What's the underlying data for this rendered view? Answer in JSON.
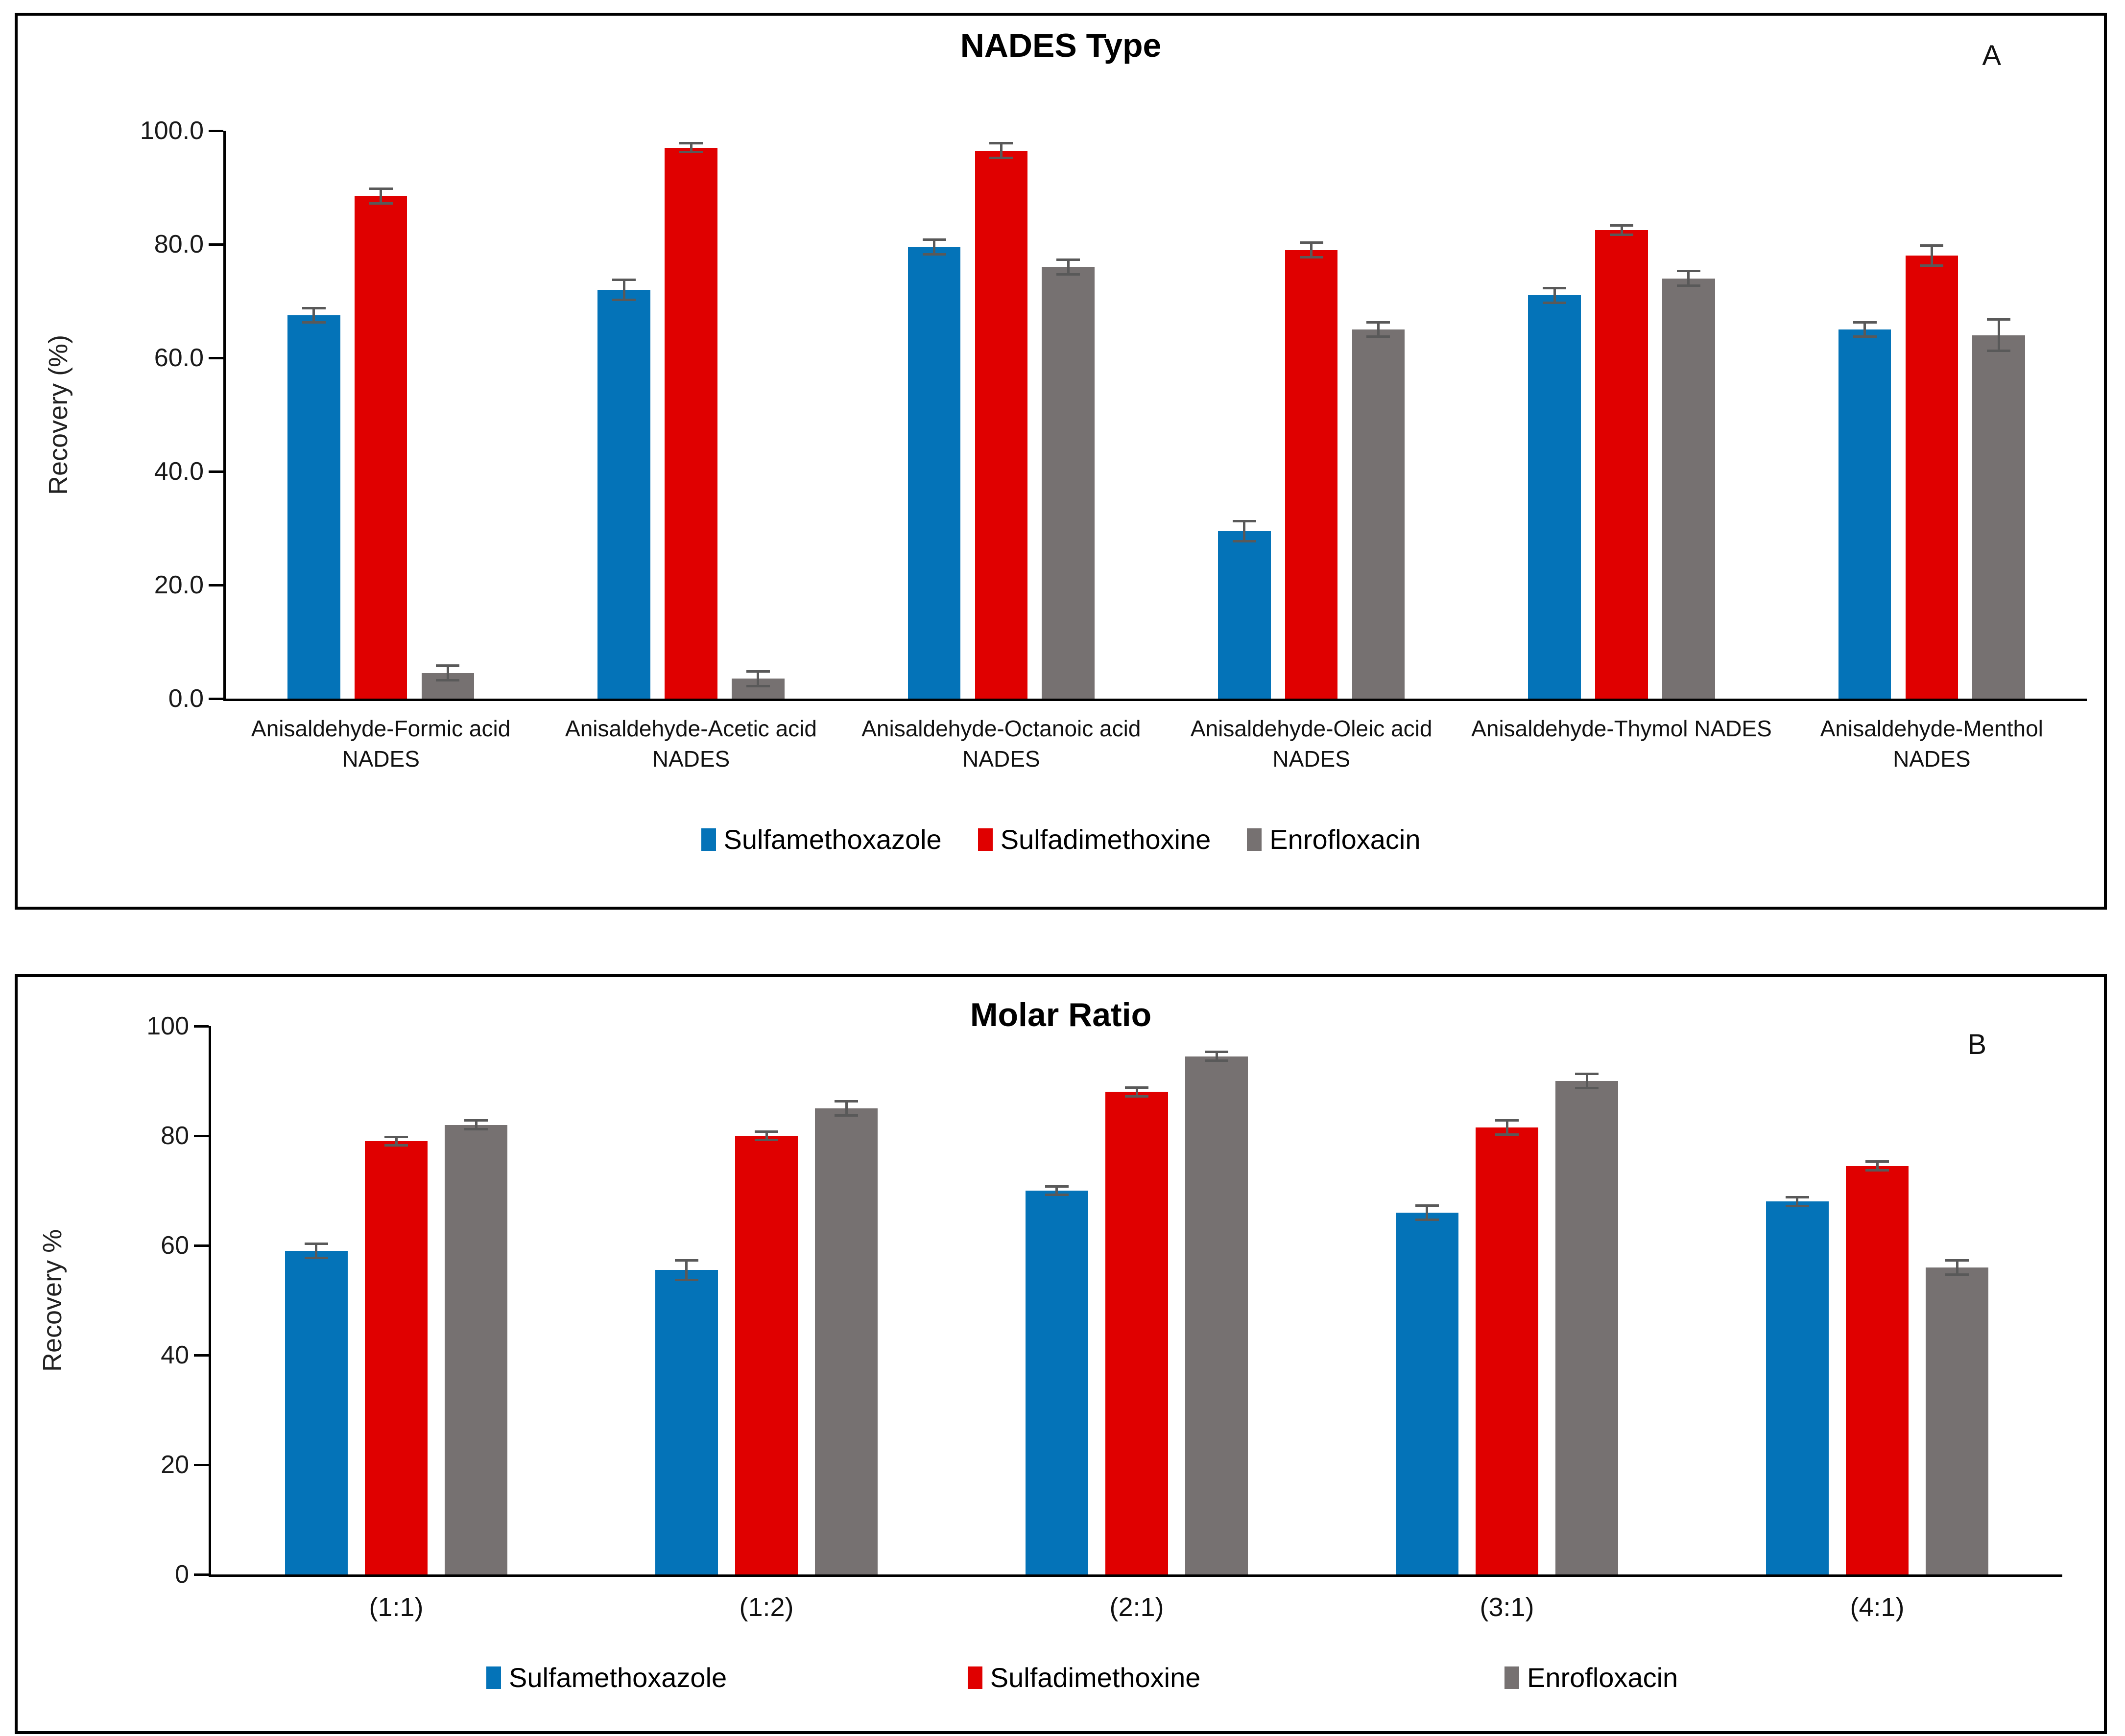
{
  "chart_data": [
    {
      "type": "bar",
      "panel": "A",
      "title": "NADES Type",
      "corner_label": "A",
      "ylabel": "Recovery (%)",
      "ylim": [
        0,
        100
      ],
      "ytick_step": 20,
      "yticks": [
        "0.0",
        "20.0",
        "40.0",
        "60.0",
        "80.0",
        "100.0"
      ],
      "grid": false,
      "legend_position": "bottom-center",
      "categories": [
        "Anisaldehyde-Formic acid NADES",
        "Anisaldehyde-Acetic acid NADES",
        "Anisaldehyde-Octanoic acid NADES",
        "Anisaldehyde-Oleic acid NADES",
        "Anisaldehyde-Thymol NADES",
        "Anisaldehyde-Menthol NADES"
      ],
      "series": [
        {
          "name": "Sulfamethoxazole",
          "color": "#0473B8",
          "values": [
            67.5,
            72.0,
            79.5,
            29.5,
            71.0,
            65.0
          ],
          "errors": [
            1.5,
            2.0,
            1.5,
            2.0,
            1.5,
            1.5
          ]
        },
        {
          "name": "Sulfadimethoxine",
          "color": "#E00000",
          "values": [
            88.5,
            97.0,
            96.5,
            79.0,
            82.5,
            78.0
          ],
          "errors": [
            1.5,
            1.0,
            1.5,
            1.5,
            1.0,
            2.0
          ]
        },
        {
          "name": "Enrofloxacin",
          "color": "#767171",
          "values": [
            4.5,
            3.5,
            76.0,
            65.0,
            74.0,
            64.0
          ],
          "errors": [
            1.5,
            1.5,
            1.5,
            1.5,
            1.5,
            3.0
          ]
        }
      ]
    },
    {
      "type": "bar",
      "panel": "B",
      "title": "Molar Ratio",
      "corner_label": "B",
      "ylabel": "Recovery %",
      "ylim": [
        0,
        100
      ],
      "ytick_step": 20,
      "yticks": [
        "0",
        "20",
        "40",
        "60",
        "80",
        "100"
      ],
      "grid": false,
      "legend_position": "bottom-spread",
      "categories": [
        "(1:1)",
        "(1:2)",
        "(2:1)",
        "(3:1)",
        "(4:1)"
      ],
      "series": [
        {
          "name": "Sulfamethoxazole",
          "color": "#0473B8",
          "values": [
            59.0,
            55.5,
            70.0,
            66.0,
            68.0
          ],
          "errors": [
            1.5,
            2.0,
            1.0,
            1.5,
            1.0
          ]
        },
        {
          "name": "Sulfadimethoxine",
          "color": "#E00000",
          "values": [
            79.0,
            80.0,
            88.0,
            81.5,
            74.5
          ],
          "errors": [
            1.0,
            1.0,
            1.0,
            1.5,
            1.0
          ]
        },
        {
          "name": "Enrofloxacin",
          "color": "#767171",
          "values": [
            82.0,
            85.0,
            94.5,
            90.0,
            56.0
          ],
          "errors": [
            1.0,
            1.5,
            1.0,
            1.5,
            1.5
          ]
        }
      ]
    }
  ],
  "style": {
    "error_bar_color": "#595959",
    "axis_color": "#000000",
    "background": "#FFFFFF"
  }
}
